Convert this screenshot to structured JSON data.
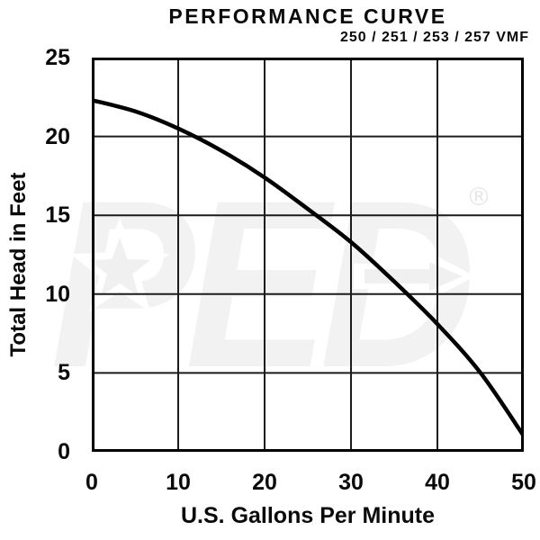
{
  "watermark": {
    "text": "PED",
    "registered": "®",
    "color_fill": "#f2f2f2",
    "color_accent": "#ffffff",
    "color_mark": "#e8e8e8"
  },
  "colors": {
    "background": "#ffffff",
    "text": "#0a0a0a",
    "frame": "#000000",
    "grid": "#1c1c1c",
    "curve": "#000000"
  },
  "chart_data": {
    "type": "line",
    "title": "PERFORMANCE CURVE",
    "subtitle": "250 / 251 / 253 / 257 VMF",
    "xlabel": "U.S. Gallons Per Minute",
    "ylabel": "Total Head in Feet",
    "xlim": [
      0,
      50
    ],
    "ylim": [
      0,
      25
    ],
    "x_ticks": [
      0,
      10,
      20,
      30,
      40,
      50
    ],
    "y_ticks": [
      0,
      5,
      10,
      15,
      20,
      25
    ],
    "grid": true,
    "legend": false,
    "series": [
      {
        "name": "250 / 251 / 253 / 257 VMF pump curve",
        "x": [
          0,
          5,
          10,
          15,
          20,
          25,
          30,
          35,
          40,
          45,
          50
        ],
        "y": [
          22.3,
          21.6,
          20.5,
          19.1,
          17.4,
          15.4,
          13.3,
          10.8,
          8.1,
          5.0,
          1.0
        ],
        "color": "#000000",
        "width": 4.5
      }
    ]
  }
}
